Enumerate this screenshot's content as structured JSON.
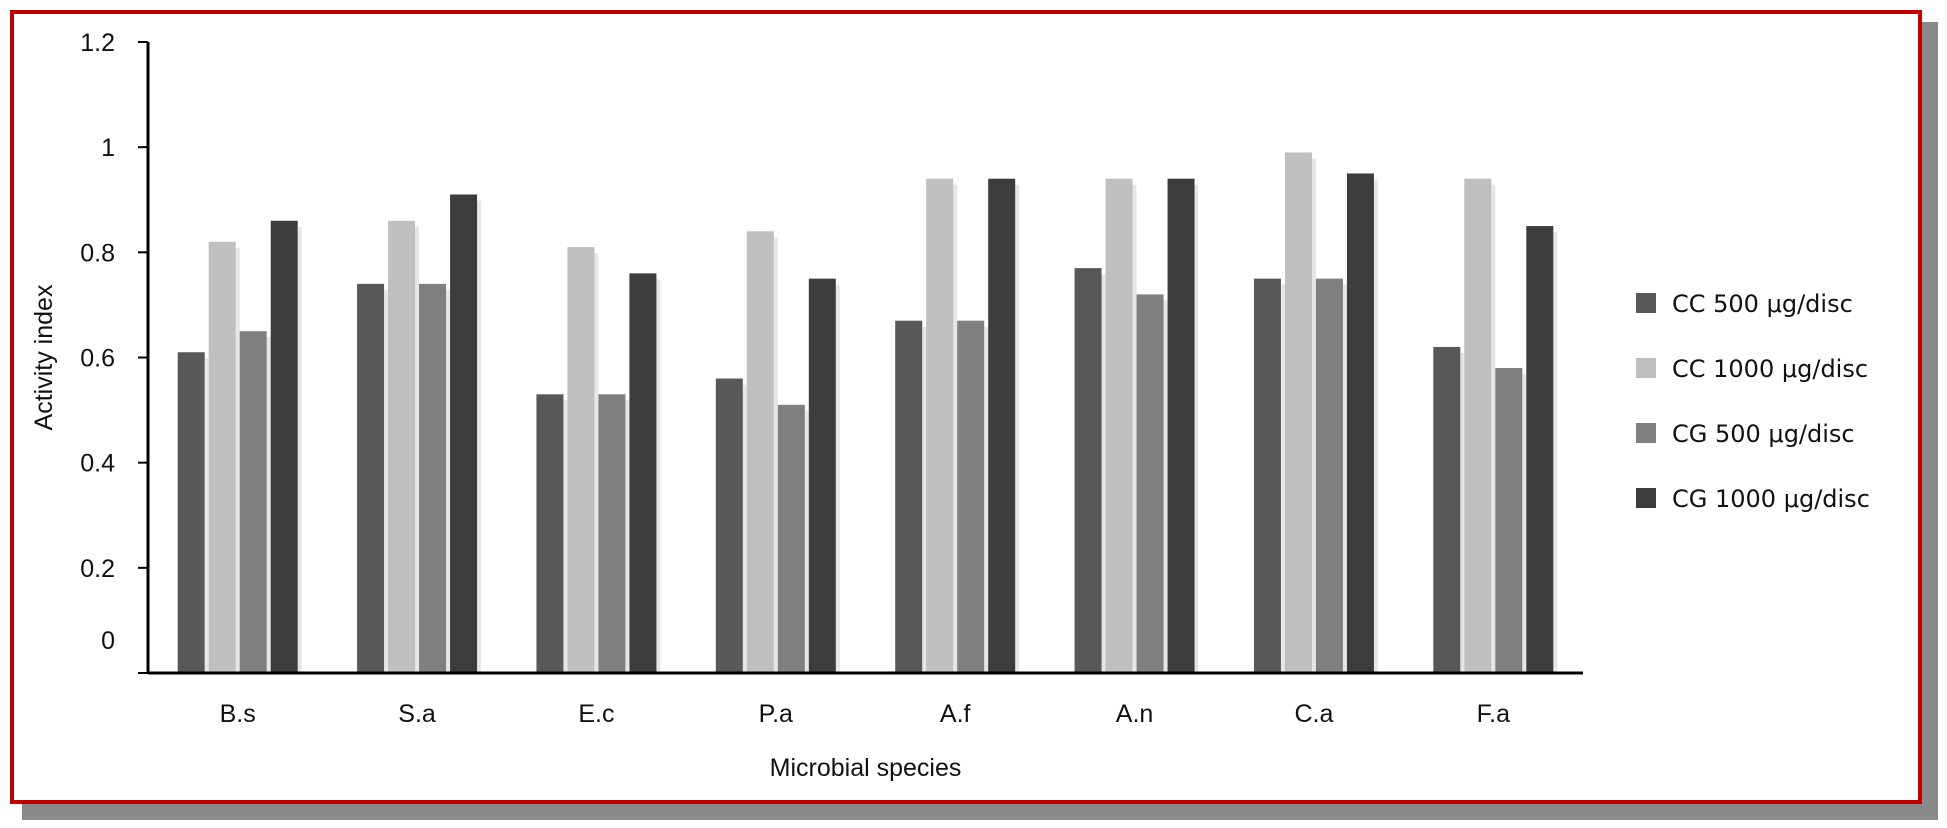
{
  "chart_data": {
    "type": "bar",
    "title": "",
    "xlabel": "Microbial species",
    "ylabel": "Activity index",
    "ylim": [
      0,
      1.2
    ],
    "yticks": [
      "0",
      "0.2",
      "0.4",
      "0.6",
      "0.8",
      "1",
      "1.2"
    ],
    "categories": [
      "B.s",
      "S.a",
      "E.c",
      "P.a",
      "A.f",
      "A.n",
      "C.a",
      "F.a"
    ],
    "series": [
      {
        "name": "CC 500 μg/disc",
        "color": "#585858",
        "values": [
          0.61,
          0.74,
          0.53,
          0.56,
          0.67,
          0.77,
          0.75,
          0.62
        ]
      },
      {
        "name": "CC 1000 μg/disc",
        "color": "#bfbfbf",
        "values": [
          0.82,
          0.86,
          0.81,
          0.84,
          0.94,
          0.94,
          0.99,
          0.94
        ]
      },
      {
        "name": "CG 500 μg/disc",
        "color": "#7f7f7f",
        "values": [
          0.65,
          0.74,
          0.53,
          0.51,
          0.67,
          0.72,
          0.75,
          0.58
        ]
      },
      {
        "name": "CG 1000 μg/disc",
        "color": "#3c3c3c",
        "values": [
          0.86,
          0.91,
          0.76,
          0.75,
          0.94,
          0.94,
          0.95,
          0.85
        ]
      }
    ],
    "legend_position": "right",
    "grid": false
  }
}
